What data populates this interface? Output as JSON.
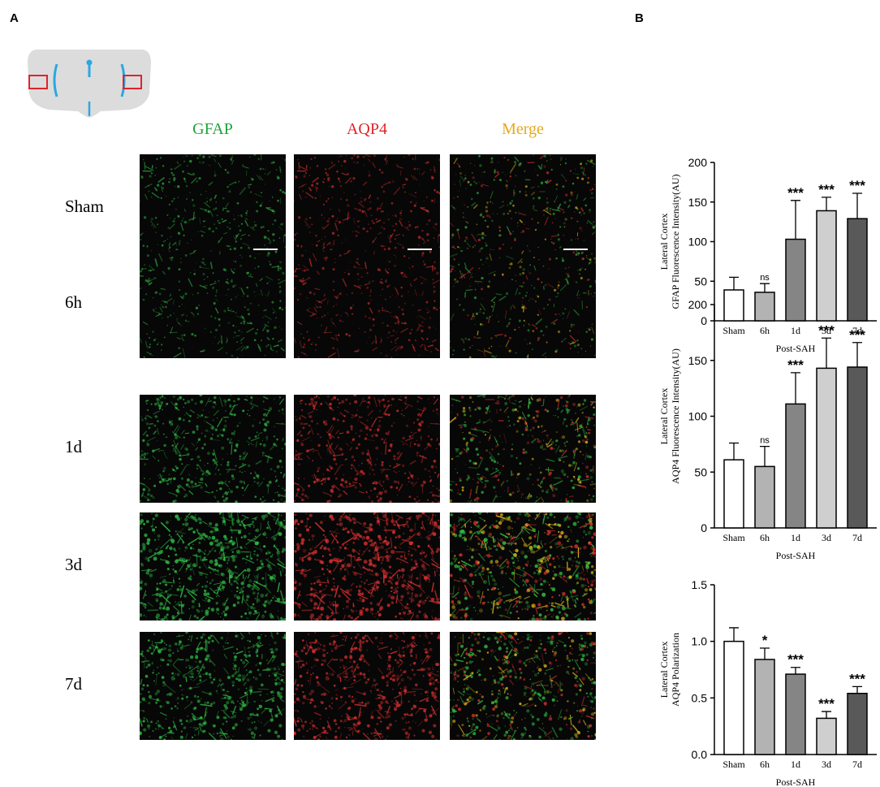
{
  "panels": {
    "a": "A",
    "b": "B"
  },
  "colors": {
    "gfap": "#1fa33a",
    "aqp4": "#e0242a",
    "merge": "#e6a91b",
    "brain_fill": "#dcdcdc",
    "ventricle": "#2aa8e2",
    "roi": "#e0242a"
  },
  "microscopy": {
    "columns": [
      {
        "key": "gfap",
        "label": "GFAP"
      },
      {
        "key": "aqp4",
        "label": "AQP4"
      },
      {
        "key": "merge",
        "label": "Merge"
      }
    ],
    "rows": [
      {
        "label": "Sham",
        "density": 0.35,
        "scale_bar": true
      },
      {
        "label": "6h",
        "density": 0.3,
        "scale_bar": false
      },
      {
        "label": "1d",
        "density": 0.6,
        "scale_bar": false
      },
      {
        "label": "3d",
        "density": 0.95,
        "scale_bar": false
      },
      {
        "label": "7d",
        "density": 0.75,
        "scale_bar": false
      }
    ]
  },
  "chart_data": [
    {
      "type": "bar",
      "categories": [
        "Sham",
        "6h",
        "1d",
        "3d",
        "7d"
      ],
      "values": [
        39,
        36,
        103,
        139,
        129
      ],
      "errors": [
        16,
        11,
        49,
        17,
        32
      ],
      "significance": [
        "",
        "ns",
        "***",
        "***",
        "***"
      ],
      "bar_colors": [
        "#ffffff",
        "#b3b3b3",
        "#858585",
        "#cfcfcf",
        "#595959"
      ],
      "ylabel_line1": "Lateral Cortex",
      "ylabel_line2": "GFAP Fluorescence Intensity(AU)",
      "xlabel": "Post-SAH",
      "ylim": [
        0,
        200
      ],
      "yticks": [
        "0",
        "50",
        "100",
        "150",
        "200"
      ]
    },
    {
      "type": "bar",
      "categories": [
        "Sham",
        "6h",
        "1d",
        "3d",
        "7d"
      ],
      "values": [
        61,
        55,
        111,
        143,
        144
      ],
      "errors": [
        15,
        18,
        28,
        27,
        22
      ],
      "significance": [
        "",
        "ns",
        "***",
        "***",
        "***"
      ],
      "bar_colors": [
        "#ffffff",
        "#b3b3b3",
        "#858585",
        "#cfcfcf",
        "#595959"
      ],
      "ylabel_line1": "Lateral Cortex",
      "ylabel_line2": "AQP4 Fluorescence Intensity(AU)",
      "xlabel": "Post-SAH",
      "ylim": [
        0,
        200
      ],
      "yticks": [
        "0",
        "50",
        "100",
        "150",
        "200"
      ]
    },
    {
      "type": "bar",
      "categories": [
        "Sham",
        "6h",
        "1d",
        "3d",
        "7d"
      ],
      "values": [
        1.0,
        0.84,
        0.71,
        0.32,
        0.54
      ],
      "errors": [
        0.12,
        0.1,
        0.06,
        0.06,
        0.06
      ],
      "significance": [
        "",
        "*",
        "***",
        "***",
        "***"
      ],
      "bar_colors": [
        "#ffffff",
        "#b3b3b3",
        "#858585",
        "#cfcfcf",
        "#595959"
      ],
      "ylabel_line1": "Lateral Cortex",
      "ylabel_line2": "AQP4 Polarization",
      "xlabel": "Post-SAH",
      "ylim": [
        0,
        1.5
      ],
      "yticks": [
        "0.0",
        "0.5",
        "1.0",
        "1.5"
      ]
    }
  ]
}
